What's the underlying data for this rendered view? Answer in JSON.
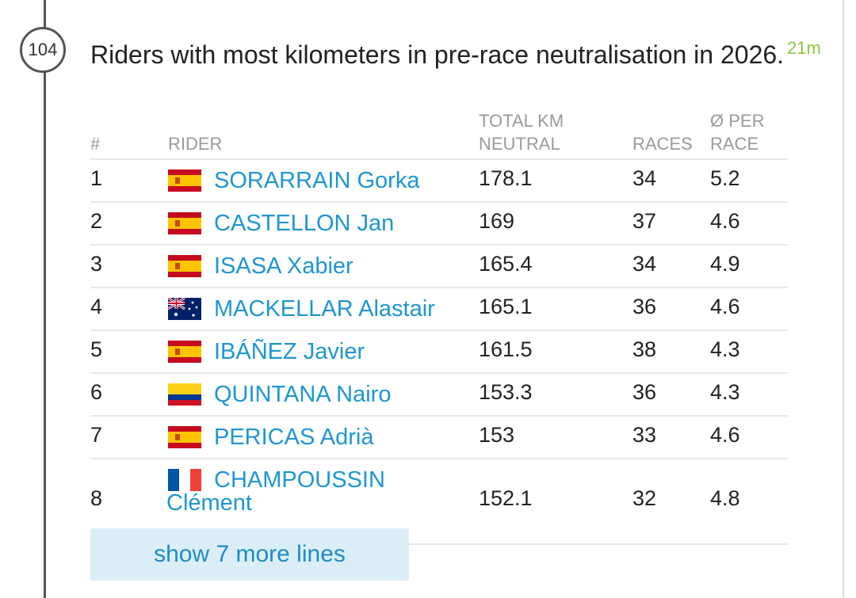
{
  "post": {
    "number": "104",
    "title": "Riders with most kilometers in pre-race neutralisation in 2026.",
    "time": "21m"
  },
  "table": {
    "headers": {
      "rank": "#",
      "rider": "RIDER",
      "total_km_line1": "TOTAL KM",
      "total_km_line2": "NEUTRAL",
      "races": "RACES",
      "avg_line1": "Ø PER",
      "avg_line2": "RACE"
    },
    "rows": [
      {
        "rank": "1",
        "flag": "spain-flag",
        "rider": "SORARRAIN Gorka",
        "km": "178.1",
        "races": "34",
        "avg": "5.2"
      },
      {
        "rank": "2",
        "flag": "spain-flag",
        "rider": "CASTELLON Jan",
        "km": "169",
        "races": "37",
        "avg": "4.6"
      },
      {
        "rank": "3",
        "flag": "spain-flag",
        "rider": "ISASA Xabier",
        "km": "165.4",
        "races": "34",
        "avg": "4.9"
      },
      {
        "rank": "4",
        "flag": "australia-flag",
        "rider": "MACKELLAR Alastair",
        "km": "165.1",
        "races": "36",
        "avg": "4.6"
      },
      {
        "rank": "5",
        "flag": "spain-flag",
        "rider": "IBÁÑEZ Javier",
        "km": "161.5",
        "races": "38",
        "avg": "4.3"
      },
      {
        "rank": "6",
        "flag": "colombia-flag",
        "rider": "QUINTANA Nairo",
        "km": "153.3",
        "races": "36",
        "avg": "4.3"
      },
      {
        "rank": "7",
        "flag": "spain-flag",
        "rider": "PERICAS Adrià",
        "km": "153",
        "races": "33",
        "avg": "4.6"
      },
      {
        "rank": "8",
        "flag": "france-flag",
        "rider": "CHAMPOUSSIN Clément",
        "km": "152.1",
        "races": "32",
        "avg": "4.8"
      }
    ]
  },
  "more_button": {
    "label": "show 7 more lines"
  },
  "colors": {
    "accent": "#1e96d2",
    "time": "#8cc63e",
    "button_bg": "#dbeef8"
  }
}
